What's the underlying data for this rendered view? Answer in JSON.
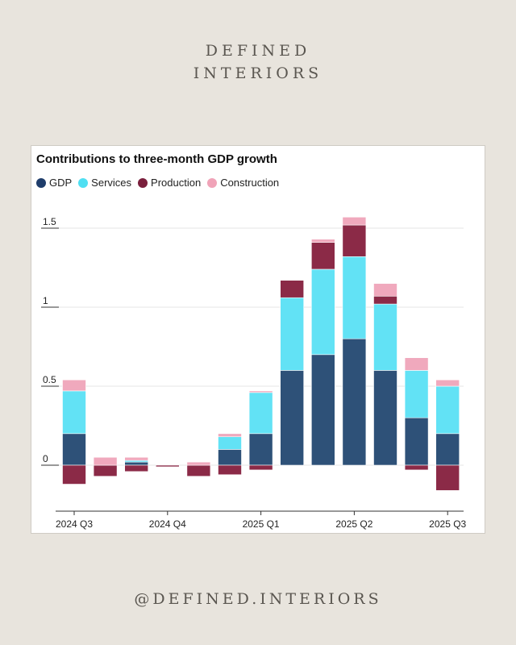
{
  "brand": {
    "line1": "DEFINED",
    "line2": "INTERIORS",
    "handle": "@DEFINED.INTERIORS"
  },
  "colors": {
    "gdp": "#2e5178",
    "services": "#62e2f5",
    "production": "#8b2a47",
    "construction": "#f0a9bd",
    "background": "#e8e4dd"
  },
  "chart_data": {
    "type": "bar",
    "title": "Contributions to three-month GDP growth",
    "stacked": true,
    "legend_position": "top-left",
    "grid": true,
    "ylim": [
      -0.25,
      1.55
    ],
    "y_ticks": [
      {
        "value": 0,
        "label": "0"
      },
      {
        "value": 0.5,
        "label": "0.5"
      },
      {
        "value": 1,
        "label": "1"
      },
      {
        "value": 1.5,
        "label": "1.5"
      }
    ],
    "x_tick_labels": [
      {
        "index": 0,
        "label": "2024 Q3"
      },
      {
        "index": 3,
        "label": "2024 Q4"
      },
      {
        "index": 6,
        "label": "2025 Q1"
      },
      {
        "index": 9,
        "label": "2025 Q2"
      },
      {
        "index": 12,
        "label": "2025 Q3"
      }
    ],
    "series": [
      {
        "name": "GDP",
        "key": "gdp",
        "values": [
          0.2,
          0,
          0.02,
          0,
          0,
          0.1,
          0.2,
          0.6,
          0.7,
          0.8,
          0.6,
          0.3,
          0.2
        ]
      },
      {
        "name": "Services",
        "key": "services",
        "values": [
          0.27,
          0,
          0.01,
          0,
          0,
          0.08,
          0.26,
          0.46,
          0.54,
          0.52,
          0.42,
          0.3,
          0.3
        ]
      },
      {
        "name": "Production",
        "key": "production",
        "values": [
          -0.12,
          -0.07,
          -0.04,
          -0.01,
          -0.07,
          -0.06,
          -0.03,
          0.11,
          0.17,
          0.2,
          0.05,
          -0.03,
          -0.16
        ]
      },
      {
        "name": "Construction",
        "key": "construction",
        "values": [
          0.07,
          0.05,
          0.02,
          0,
          0.02,
          0.02,
          0.01,
          0,
          0.02,
          0.05,
          0.08,
          0.08,
          0.04
        ]
      }
    ]
  }
}
